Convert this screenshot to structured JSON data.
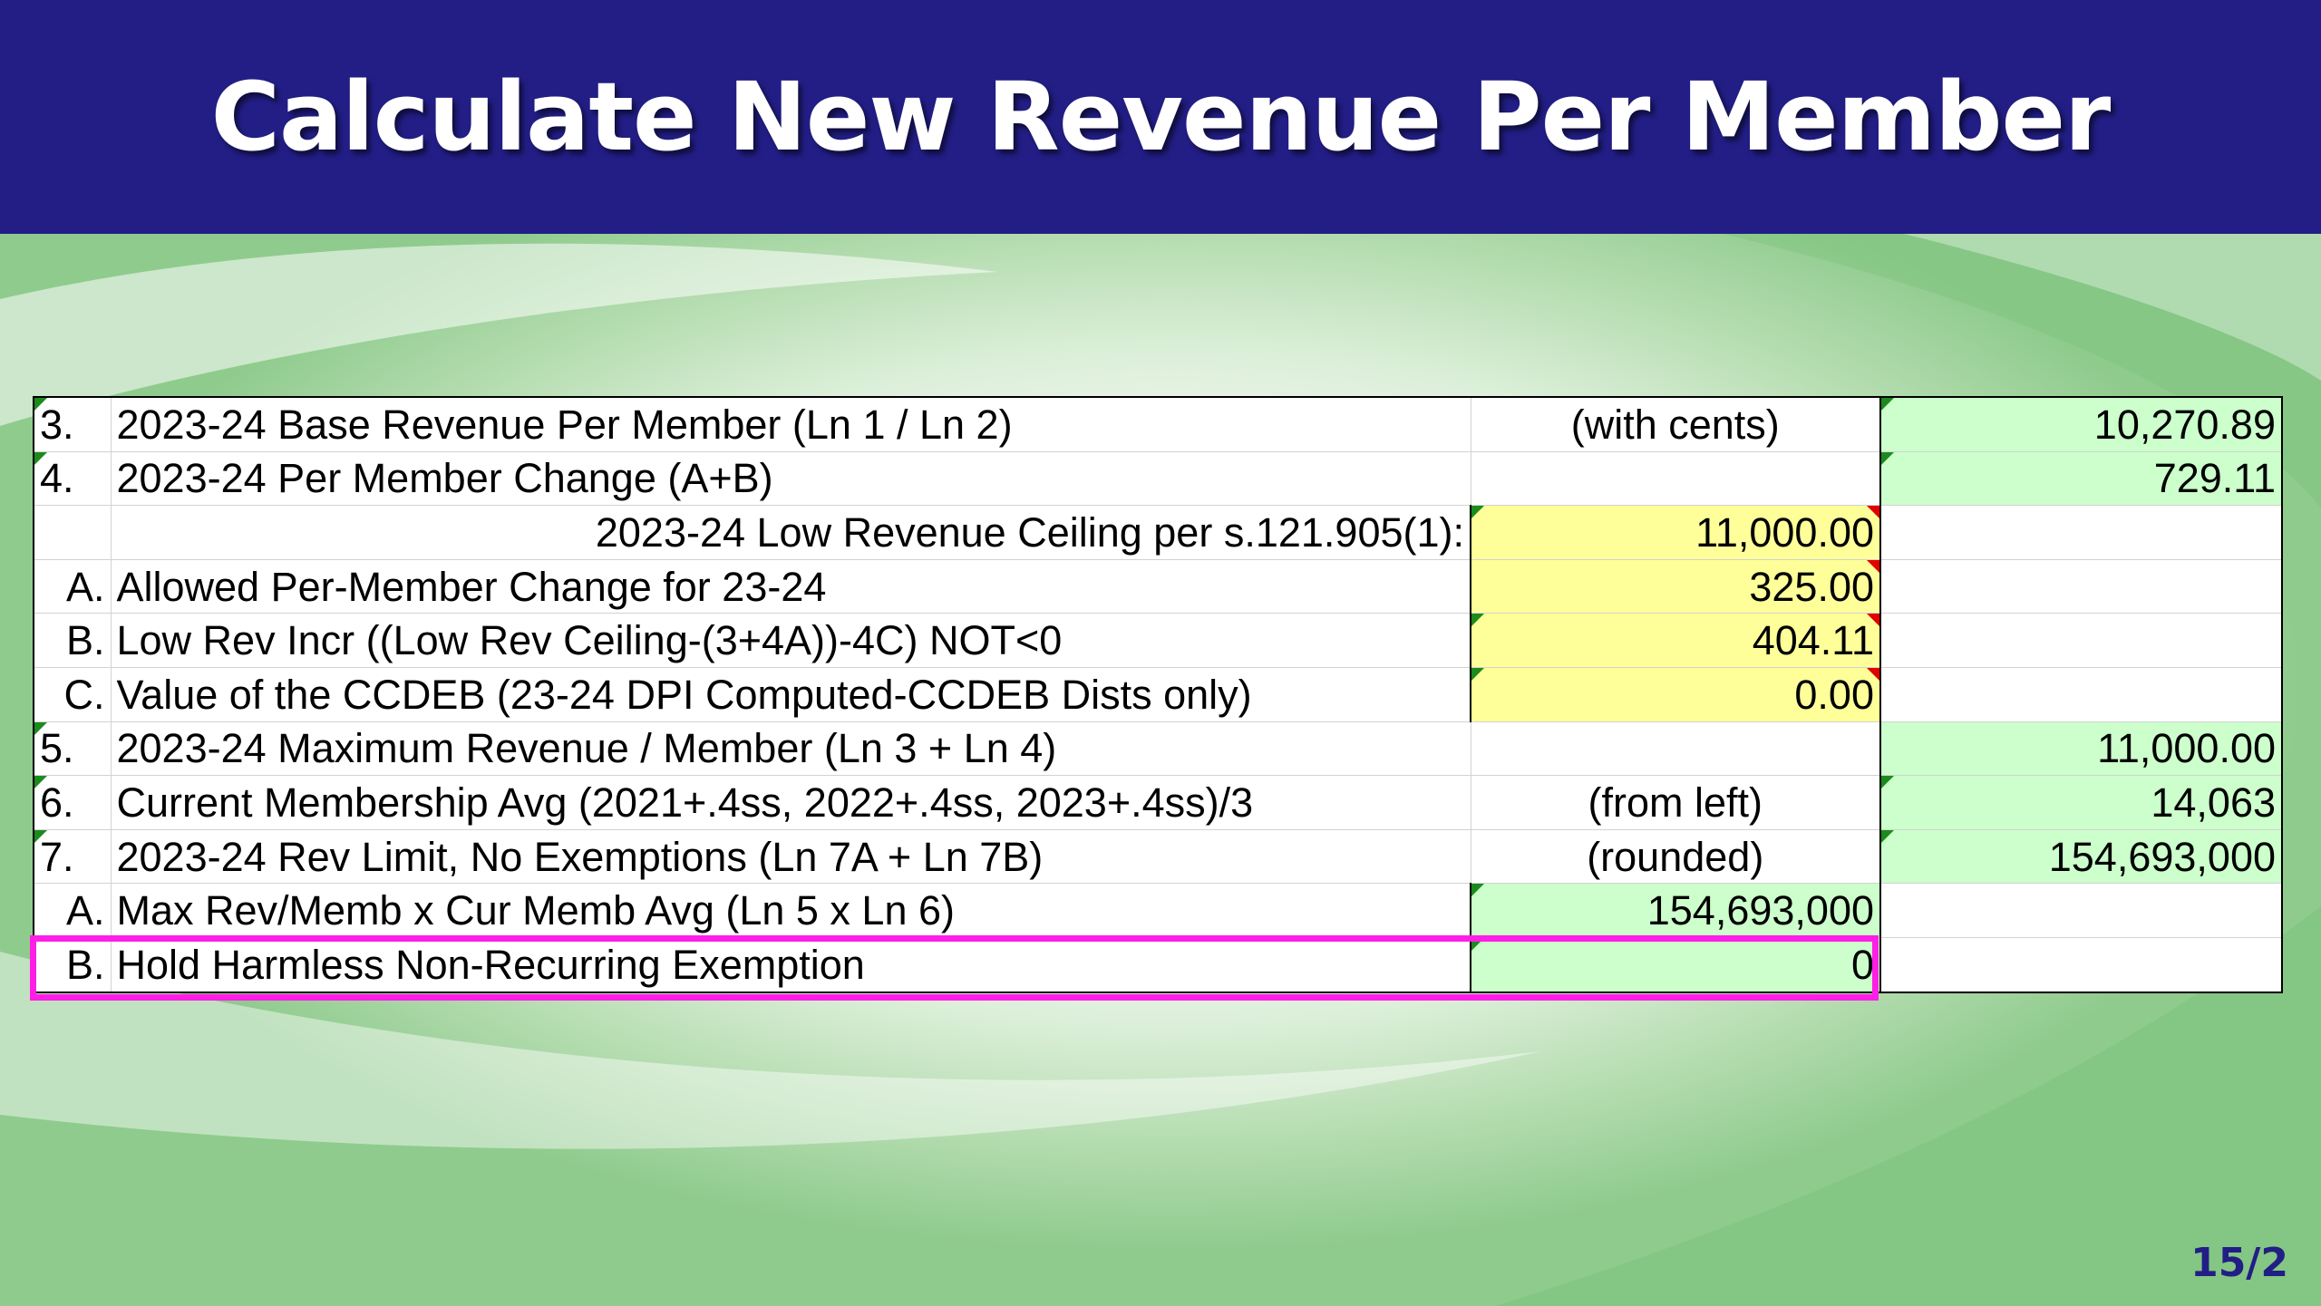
{
  "slide": {
    "title": "Calculate New Revenue Per Member",
    "page_number": "15/2"
  },
  "colors": {
    "title_bar": "#221e86",
    "highlight_box": "#ff1ee6",
    "input_cell": "#ffff99",
    "calc_cell": "#ccffcc"
  },
  "rows": [
    {
      "num": "3.",
      "desc": "2023-24 Base Revenue Per Member (Ln 1 / Ln 2)",
      "mid": "(with cents)",
      "val": "10,270.89"
    },
    {
      "num": "4.",
      "desc": "2023-24 Per Member Change  (A+B)",
      "mid": "",
      "val": "729.11"
    },
    {
      "num": "",
      "desc": "2023-24 Low Revenue Ceiling per s.121.905(1):",
      "mid": "11,000.00",
      "val": ""
    },
    {
      "num": "A.",
      "desc": "Allowed Per-Member Change for 23-24",
      "mid": "325.00",
      "val": ""
    },
    {
      "num": "B.",
      "desc": "Low Rev Incr ((Low Rev Ceiling-(3+4A))-4C) NOT<0",
      "mid": "404.11",
      "val": ""
    },
    {
      "num": "C.",
      "desc": "Value of the CCDEB (23-24 DPI Computed-CCDEB Dists only)",
      "mid": "0.00",
      "val": ""
    },
    {
      "num": "5.",
      "desc": "2023-24 Maximum Revenue / Member (Ln 3 + Ln 4)",
      "mid": "",
      "val": "11,000.00"
    },
    {
      "num": "6.",
      "desc": "Current Membership Avg (2021+.4ss, 2022+.4ss, 2023+.4ss)/3",
      "mid": "(from left)",
      "val": "14,063"
    },
    {
      "num": "7.",
      "desc": "2023-24 Rev Limit, No Exemptions (Ln 7A + Ln 7B)",
      "mid": "(rounded)",
      "val": "154,693,000"
    },
    {
      "num": "A.",
      "desc": "Max Rev/Memb x Cur Memb Avg (Ln 5 x Ln 6)",
      "mid": "154,693,000",
      "val": ""
    },
    {
      "num": "B.",
      "desc": "Hold Harmless Non-Recurring Exemption",
      "mid": "0",
      "val": ""
    }
  ]
}
